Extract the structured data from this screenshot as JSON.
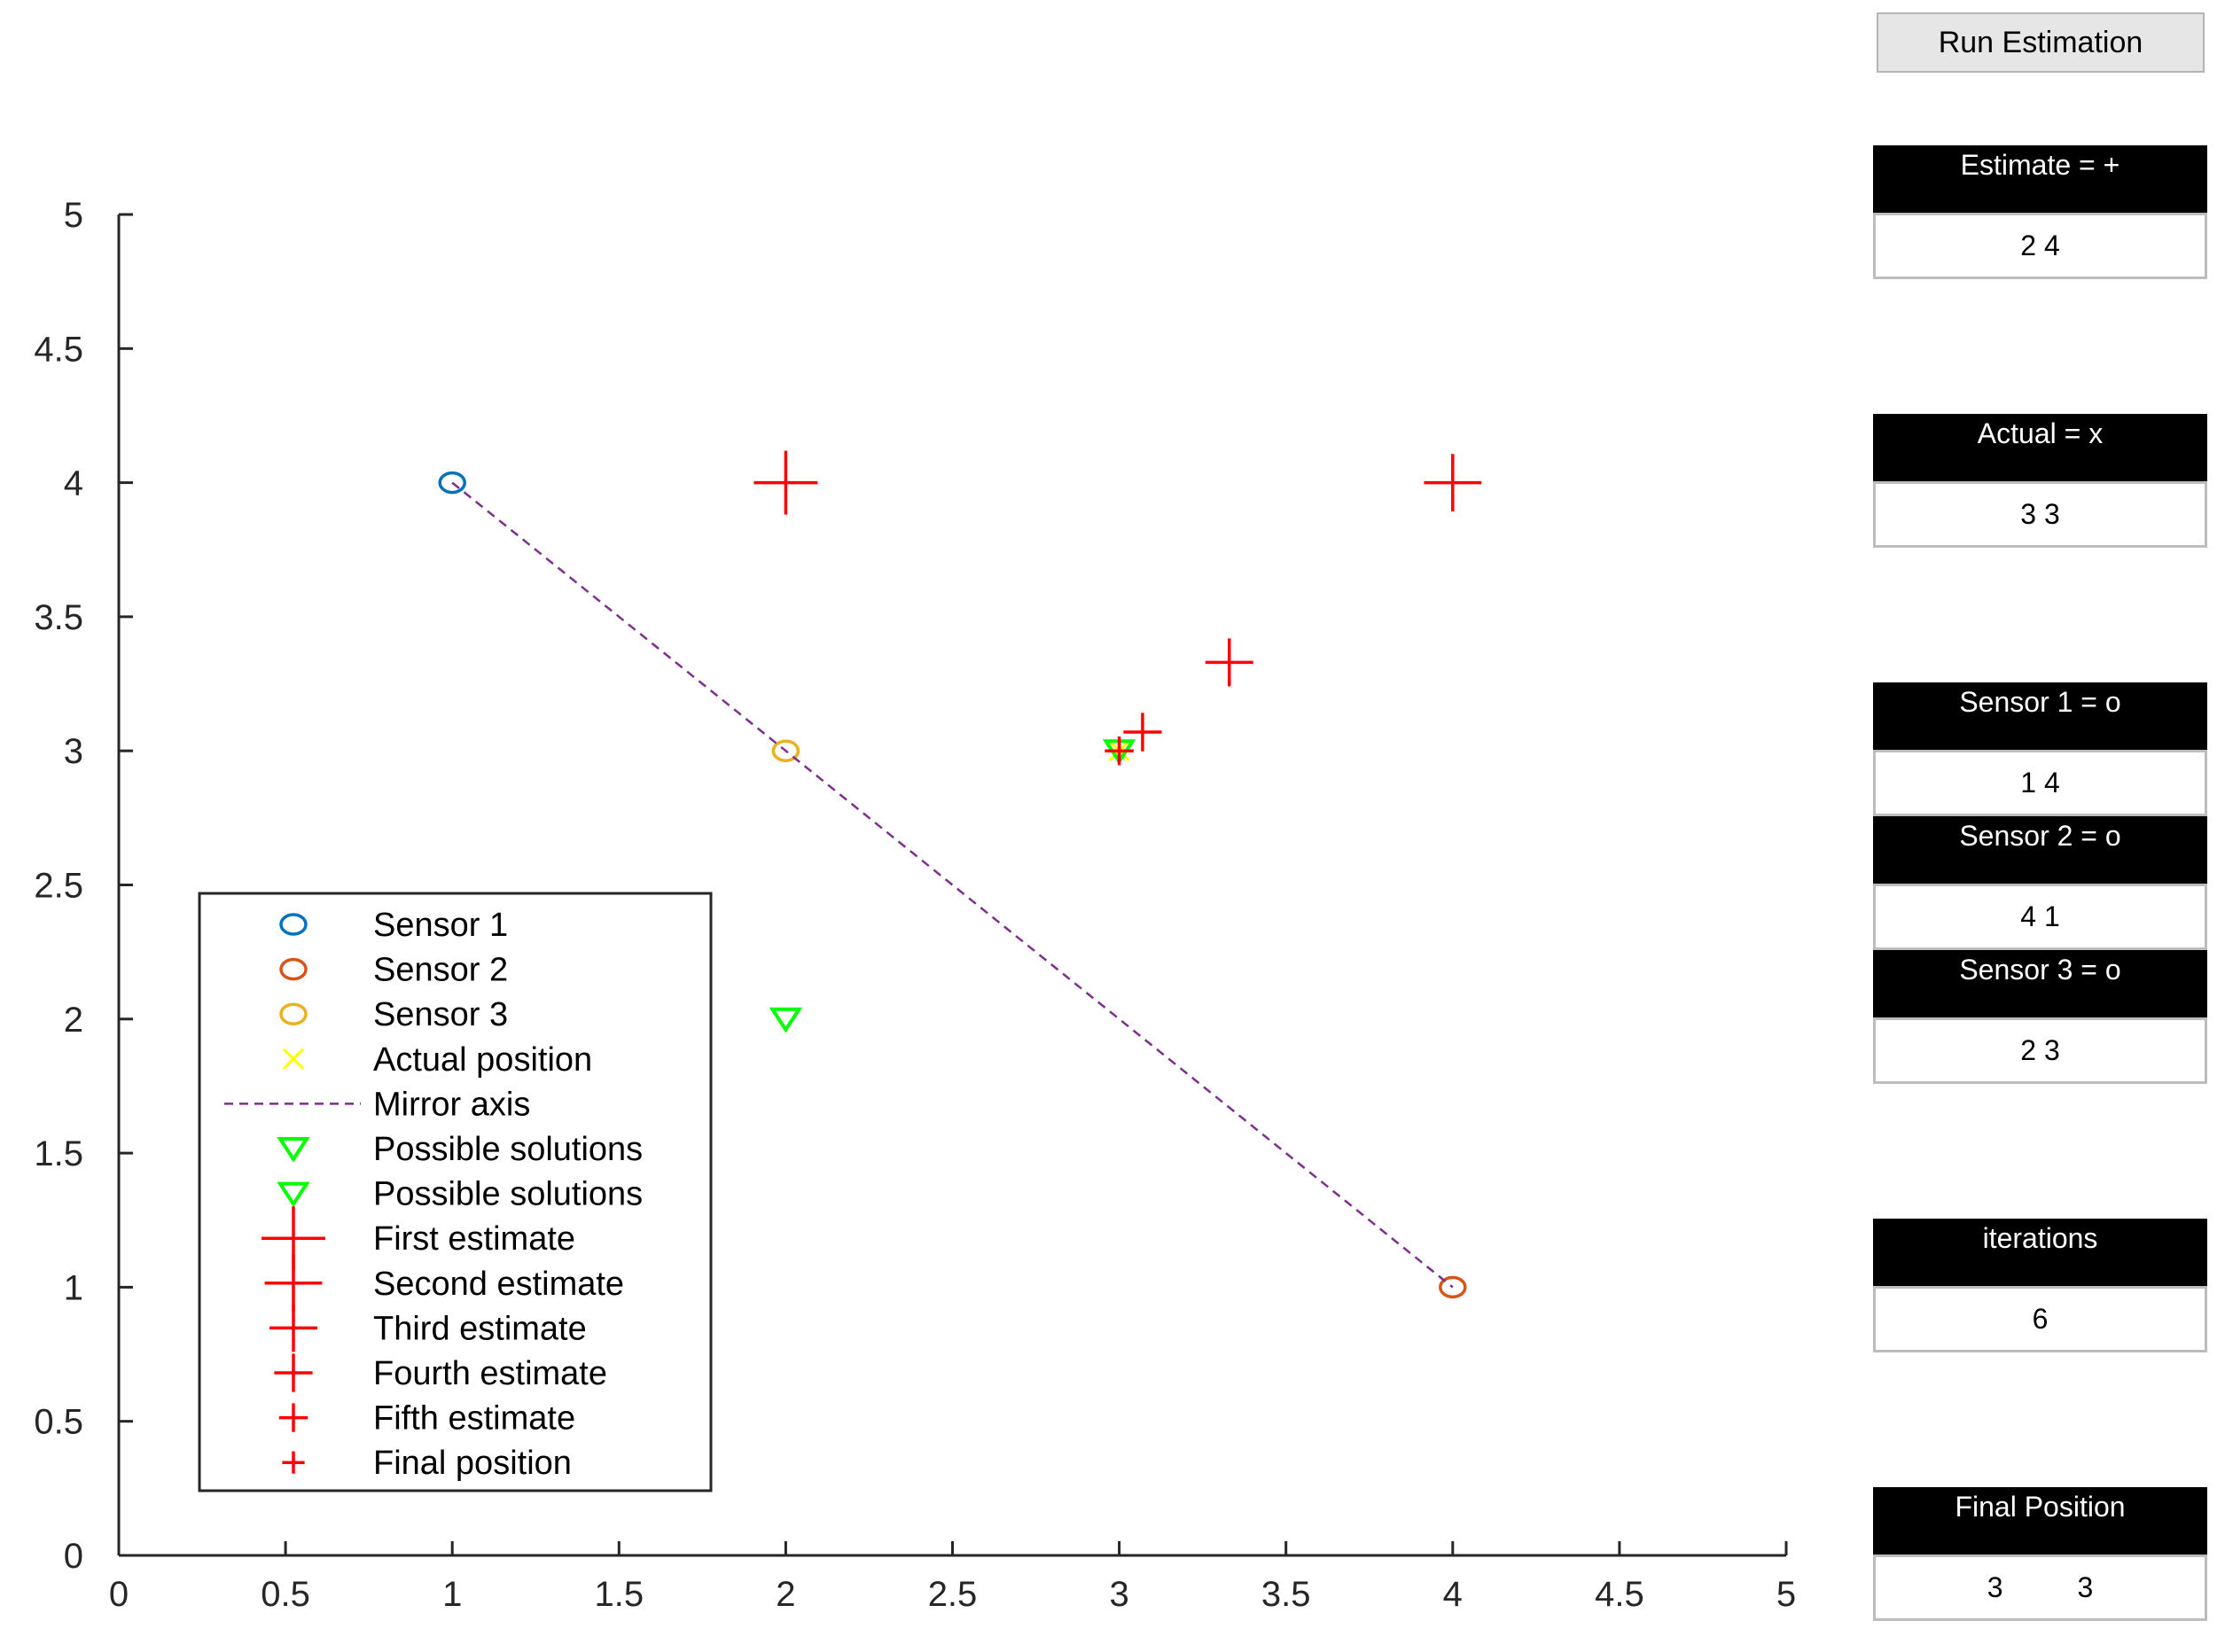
{
  "controls": {
    "run_button_label": "Run Estimation"
  },
  "panels": {
    "estimate": {
      "label": "Estimate = +",
      "value": "2 4"
    },
    "actual": {
      "label": "Actual = x",
      "value": "3 3"
    },
    "sensor1": {
      "label": "Sensor 1 = o",
      "value": "1 4"
    },
    "sensor2": {
      "label": "Sensor 2 = o",
      "value": "4 1"
    },
    "sensor3": {
      "label": "Sensor 3 = o",
      "value": "2 3"
    },
    "iterations": {
      "label": "iterations",
      "value": "6"
    },
    "final": {
      "label": "Final Position",
      "x": "3",
      "y": "3"
    }
  },
  "colors": {
    "sensor1": "#0072BD",
    "sensor2": "#D95319",
    "sensor3": "#EDB120",
    "actual": "#FFFF00",
    "mirror": "#7E2F8E",
    "solutions": "#00FF00",
    "estimate": "#FF0000"
  },
  "chart_data": {
    "type": "scatter",
    "title": "",
    "xlabel": "",
    "ylabel": "",
    "xlim": [
      0,
      5
    ],
    "ylim": [
      0,
      5
    ],
    "xticks": [
      "0",
      "0.5",
      "1",
      "1.5",
      "2",
      "2.5",
      "3",
      "3.5",
      "4",
      "4.5",
      "5"
    ],
    "yticks": [
      "0",
      "0.5",
      "1",
      "1.5",
      "2",
      "2.5",
      "3",
      "3.5",
      "4",
      "4.5",
      "5"
    ],
    "legend_position": "lower-left",
    "series": [
      {
        "name": "Sensor 1",
        "marker": "circle",
        "color_key": "sensor1",
        "points": [
          [
            1,
            4
          ]
        ]
      },
      {
        "name": "Sensor 2",
        "marker": "circle",
        "color_key": "sensor2",
        "points": [
          [
            4,
            1
          ]
        ]
      },
      {
        "name": "Sensor 3",
        "marker": "circle",
        "color_key": "sensor3",
        "points": [
          [
            2,
            3
          ]
        ]
      },
      {
        "name": "Actual position",
        "marker": "x",
        "color_key": "actual",
        "points": [
          [
            3,
            3
          ]
        ]
      },
      {
        "name": "Mirror axis",
        "marker": "dashed-line",
        "color_key": "mirror",
        "points": [
          [
            1,
            4
          ],
          [
            4,
            1
          ]
        ]
      },
      {
        "name": "Possible solutions",
        "marker": "triangle-down",
        "color_key": "solutions",
        "points": [
          [
            2,
            2
          ]
        ]
      },
      {
        "name": "Possible solutions",
        "marker": "triangle-down",
        "color_key": "solutions",
        "points": [
          [
            3,
            3
          ]
        ]
      },
      {
        "name": "First estimate",
        "marker": "plus",
        "size": 1.0,
        "color_key": "estimate",
        "points": [
          [
            2,
            4
          ]
        ]
      },
      {
        "name": "Second estimate",
        "marker": "plus",
        "size": 0.9,
        "color_key": "estimate",
        "points": [
          [
            4,
            4
          ]
        ]
      },
      {
        "name": "Third estimate",
        "marker": "plus",
        "size": 0.75,
        "color_key": "estimate",
        "points": [
          [
            3.33,
            3.33
          ]
        ]
      },
      {
        "name": "Fourth estimate",
        "marker": "plus",
        "size": 0.6,
        "color_key": "estimate",
        "points": [
          [
            3.07,
            3.07
          ]
        ]
      },
      {
        "name": "Fifth estimate",
        "marker": "plus",
        "size": 0.45,
        "color_key": "estimate",
        "points": [
          [
            3.0,
            3.0
          ]
        ]
      },
      {
        "name": "Final position",
        "marker": "plus",
        "size": 0.35,
        "color_key": "estimate",
        "points": [
          [
            3,
            3
          ]
        ]
      }
    ]
  }
}
